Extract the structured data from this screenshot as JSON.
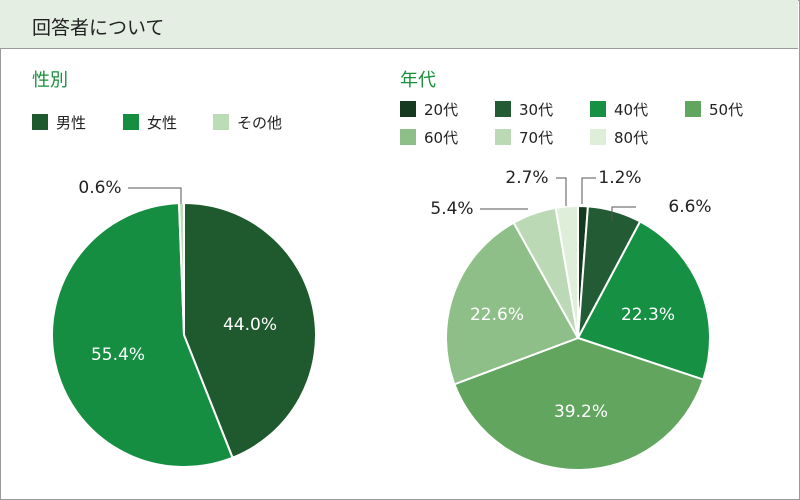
{
  "header": {
    "title": "回答者について"
  },
  "chart_data": [
    {
      "type": "pie",
      "title": "性別",
      "legend_position": "top",
      "categories": [
        "男性",
        "女性",
        "その他"
      ],
      "values": [
        44.0,
        55.4,
        0.6
      ],
      "labels": [
        "44.0%",
        "55.4%",
        "0.6%"
      ],
      "colors": [
        "#1f5a2e",
        "#168e42",
        "#bcdcb7"
      ]
    },
    {
      "type": "pie",
      "title": "年代",
      "legend_position": "top",
      "categories": [
        "20代",
        "30代",
        "40代",
        "50代",
        "60代",
        "70代",
        "80代"
      ],
      "values": [
        1.2,
        6.6,
        22.3,
        39.2,
        22.6,
        5.4,
        2.7
      ],
      "labels": [
        "1.2%",
        "6.6%",
        "22.3%",
        "39.2%",
        "22.6%",
        "5.4%",
        "2.7%"
      ],
      "colors": [
        "#163a1f",
        "#235c34",
        "#169144",
        "#62a55f",
        "#8fbf88",
        "#bcd9b6",
        "#deeed9"
      ]
    }
  ]
}
